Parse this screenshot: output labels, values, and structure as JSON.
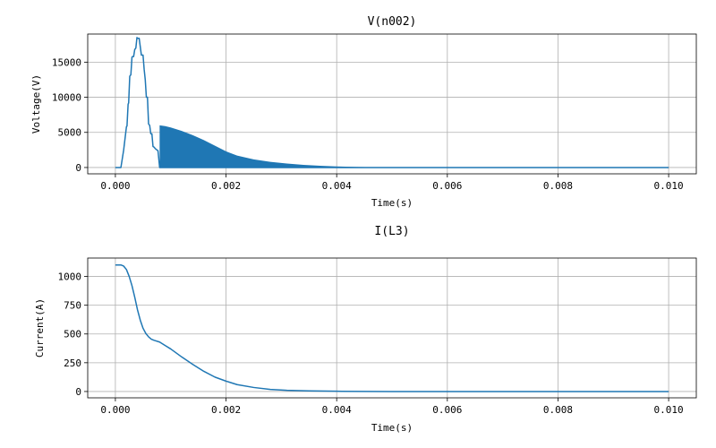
{
  "chart_data": [
    {
      "type": "line",
      "title": "V(n002)",
      "xlabel": "Time(s)",
      "ylabel": "Voltage(V)",
      "xlim": [
        -0.0005,
        0.0105
      ],
      "ylim": [
        -900,
        19000
      ],
      "xticks": [
        0.0,
        0.002,
        0.004,
        0.006,
        0.008,
        0.01
      ],
      "xtick_labels": [
        "0.000",
        "0.002",
        "0.004",
        "0.006",
        "0.008",
        "0.010"
      ],
      "yticks": [
        0,
        5000,
        10000,
        15000
      ],
      "ytick_labels": [
        "0",
        "5000",
        "10000",
        "15000"
      ],
      "grid": true,
      "color": "#1f77b4",
      "series": [
        {
          "x": [
            0.0,
            0.0001,
            0.00015,
            0.0002,
            0.00021,
            0.00023,
            0.00024,
            0.00026,
            0.00028,
            0.0003,
            0.00031,
            0.00033,
            0.00035,
            0.00037,
            0.00039,
            0.0004,
            0.00043,
            0.00045,
            0.00047,
            0.0005,
            0.00052,
            0.00054,
            0.00056,
            0.00058,
            0.0006,
            0.00062,
            0.00064,
            0.00066,
            0.00068,
            0.0007,
            0.00072,
            0.00075,
            0.00077,
            0.0008
          ],
          "y": [
            0,
            0,
            2500,
            5800,
            5900,
            9000,
            9200,
            13000,
            13200,
            15700,
            15800,
            15800,
            16800,
            17000,
            18500,
            18400,
            18400,
            17200,
            16000,
            16000,
            14000,
            12500,
            10000,
            10000,
            6200,
            6000,
            4800,
            4800,
            3000,
            2900,
            2700,
            2500,
            2400,
            0
          ]
        }
      ],
      "oscillation": {
        "x_start": 0.0008,
        "x_end": 0.0048,
        "envelope_x": [
          0.0008,
          0.0009,
          0.001,
          0.0012,
          0.0014,
          0.0016,
          0.0018,
          0.002,
          0.0022,
          0.0025,
          0.0028,
          0.0031,
          0.0034,
          0.0037,
          0.004,
          0.0044,
          0.0048
        ],
        "envelope_upper": [
          6000,
          5900,
          5700,
          5200,
          4600,
          3900,
          3100,
          2300,
          1700,
          1150,
          800,
          560,
          380,
          250,
          150,
          80,
          20
        ],
        "envelope_lower": [
          0,
          0,
          0,
          0,
          0,
          0,
          0,
          0,
          0,
          0,
          0,
          0,
          0,
          0,
          0,
          0,
          0
        ]
      },
      "tail": {
        "x": [
          0.0048,
          0.01
        ],
        "y": [
          0,
          0
        ]
      }
    },
    {
      "type": "line",
      "title": "I(L3)",
      "xlabel": "Time(s)",
      "ylabel": "Current(A)",
      "xlim": [
        -0.0005,
        0.0105
      ],
      "ylim": [
        -55,
        1160
      ],
      "xticks": [
        0.0,
        0.002,
        0.004,
        0.006,
        0.008,
        0.01
      ],
      "xtick_labels": [
        "0.000",
        "0.002",
        "0.004",
        "0.006",
        "0.008",
        "0.010"
      ],
      "yticks": [
        0,
        250,
        500,
        750,
        1000
      ],
      "ytick_labels": [
        "0",
        "250",
        "500",
        "750",
        "1000"
      ],
      "grid": true,
      "color": "#1f77b4",
      "series": [
        {
          "x": [
            0.0,
            0.0001,
            0.00015,
            0.0002,
            0.00025,
            0.0003,
            0.00035,
            0.0004,
            0.00045,
            0.0005,
            0.00055,
            0.0006,
            0.00065,
            0.0007,
            0.0008,
            0.0009,
            0.001,
            0.0012,
            0.0014,
            0.0016,
            0.0018,
            0.002,
            0.0022,
            0.0025,
            0.0028,
            0.0031,
            0.0035,
            0.004,
            0.005,
            0.006,
            0.007,
            0.008,
            0.009,
            0.01
          ],
          "y": [
            1100,
            1100,
            1090,
            1060,
            1000,
            920,
            820,
            710,
            620,
            550,
            505,
            475,
            455,
            445,
            430,
            400,
            370,
            300,
            235,
            175,
            125,
            90,
            60,
            35,
            18,
            10,
            5,
            2,
            0,
            0,
            0,
            0,
            0,
            0
          ]
        }
      ]
    }
  ]
}
